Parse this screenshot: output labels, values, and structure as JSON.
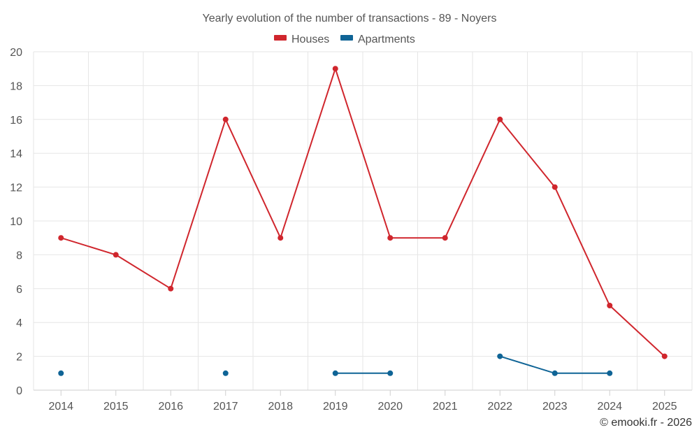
{
  "chart_data": {
    "type": "line",
    "title": "Yearly evolution of the number of transactions - 89 - Noyers",
    "xlabel": "",
    "ylabel": "",
    "categories": [
      "2014",
      "2015",
      "2016",
      "2017",
      "2018",
      "2019",
      "2020",
      "2021",
      "2022",
      "2023",
      "2024",
      "2025"
    ],
    "ylim": [
      0,
      20
    ],
    "yticks": [
      0,
      2,
      4,
      6,
      8,
      10,
      12,
      14,
      16,
      18,
      20
    ],
    "grid": true,
    "legend_position": "top-center",
    "series": [
      {
        "name": "Houses",
        "color": "#d0262d",
        "values": [
          9,
          8,
          6,
          16,
          9,
          19,
          9,
          9,
          16,
          12,
          5,
          2
        ]
      },
      {
        "name": "Apartments",
        "color": "#0f6496",
        "values": [
          1,
          null,
          null,
          1,
          null,
          1,
          1,
          null,
          2,
          1,
          1,
          null
        ]
      }
    ]
  },
  "credit": "© emooki.fr - 2026"
}
